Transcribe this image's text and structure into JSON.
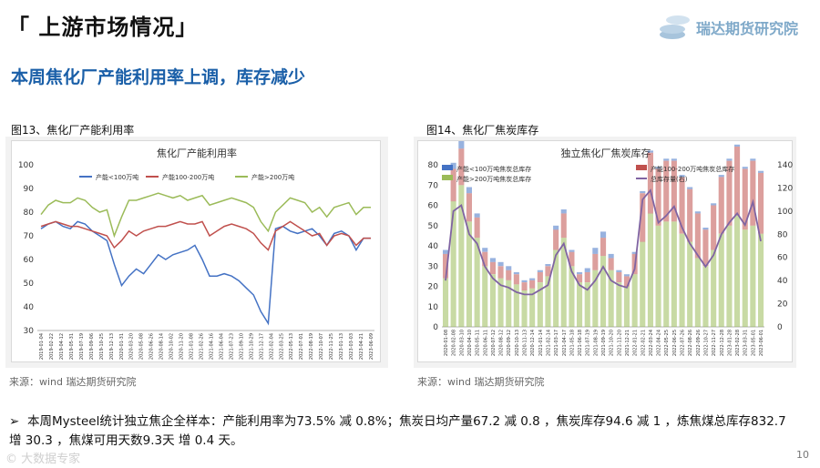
{
  "header": {
    "title": "「 上游市场情况」",
    "brand": "瑞达期货研究院"
  },
  "headline": "本周焦化厂产能利用率上调，库存减少",
  "figures": [
    {
      "caption": "图13、焦化厂产能利用率",
      "source": "来源：wind   瑞达期货研究院"
    },
    {
      "caption": "图14、焦化厂焦炭库存",
      "source": "来源：wind   瑞达期货研究院"
    }
  ],
  "bullet": "本周Mysteel统计独立焦企全样本：产能利用率为73.5% 减 0.8%；焦炭日均产量67.2 减 0.8 ，焦炭库存94.6 减 1 ，炼焦煤总库存832.7 增 30.3 ，焦煤可用天数9.3天 增 0.4 天。",
  "page_number": "10",
  "watermark": "© 大数据专家",
  "colors": {
    "blue": "#4472c4",
    "red": "#c0504d",
    "green": "#9bbb59",
    "purple": "#8064a2",
    "headline": "#1a5fa8"
  },
  "chart_data": [
    {
      "type": "line",
      "title": "焦化厂产能利用率",
      "ylim": [
        30,
        100
      ],
      "yticks": [
        30,
        40,
        50,
        60,
        70,
        80,
        90,
        100
      ],
      "x_ticks": [
        "2019-01-04",
        "2019-02-22",
        "2019-04-12",
        "2019-05-31",
        "2019-07-19",
        "2019-09-06",
        "2019-10-25",
        "2019-12-13",
        "2020-01-31",
        "2020-03-20",
        "2020-05-08",
        "2020-06-26",
        "2020-08-14",
        "2020-10-02",
        "2020-11-20",
        "2021-01-08",
        "2021-02-26",
        "2021-04-16",
        "2021-06-04",
        "2021-07-23",
        "2021-09-10",
        "2021-10-29",
        "2021-12-17",
        "2022-02-04",
        "2022-03-25",
        "2022-05-13",
        "2022-07-01",
        "2022-08-19",
        "2022-10-07",
        "2022-11-25",
        "2023-01-13",
        "2023-03-03",
        "2023-04-21",
        "2023-06-09"
      ],
      "legend_position": "top",
      "series": [
        {
          "name": "产能<100万吨",
          "color": "#4472c4",
          "values": [
            73,
            75,
            76,
            74,
            73,
            76,
            75,
            72,
            70,
            68,
            58,
            49,
            53,
            56,
            54,
            58,
            62,
            60,
            62,
            63,
            64,
            66,
            60,
            53,
            53,
            54,
            53,
            51,
            48,
            45,
            38,
            33,
            73,
            74,
            72,
            71,
            72,
            73,
            70,
            66,
            71,
            72,
            70,
            64,
            69,
            69
          ]
        },
        {
          "name": "产能100-200万吨",
          "color": "#c0504d",
          "values": [
            74,
            75,
            76,
            75,
            74,
            74,
            73,
            72,
            71,
            70,
            65,
            68,
            72,
            70,
            72,
            73,
            74,
            74,
            75,
            76,
            75,
            75,
            76,
            70,
            72,
            74,
            75,
            74,
            73,
            71,
            67,
            64,
            72,
            74,
            76,
            74,
            72,
            70,
            71,
            66,
            70,
            71,
            70,
            66,
            69,
            69
          ]
        },
        {
          "name": "产能>200万吨",
          "color": "#9bbb59",
          "values": [
            79,
            83,
            85,
            84,
            84,
            86,
            85,
            82,
            80,
            81,
            70,
            78,
            85,
            85,
            86,
            87,
            88,
            87,
            86,
            87,
            85,
            86,
            87,
            83,
            84,
            85,
            86,
            85,
            84,
            82,
            76,
            72,
            80,
            83,
            86,
            85,
            84,
            80,
            82,
            78,
            82,
            83,
            84,
            79,
            82,
            82
          ]
        }
      ]
    },
    {
      "type": "bar",
      "title": "独立焦化厂焦炭库存",
      "ylim_left": [
        0,
        80
      ],
      "ylim_right": [
        0,
        140
      ],
      "yticks_left": [
        0,
        10,
        20,
        30,
        40,
        50,
        60,
        70,
        80
      ],
      "yticks_right": [
        0,
        20,
        40,
        60,
        80,
        100,
        120,
        140
      ],
      "x_ticks": [
        "2020-01-08",
        "2020-02-08",
        "2020-03-10",
        "2020-04-10",
        "2020-05-11",
        "2020-06-11",
        "2020-07-12",
        "2020-08-12",
        "2020-09-12",
        "2020-10-13",
        "2020-11-13",
        "2020-12-14",
        "2021-01-14",
        "2021-02-14",
        "2021-03-17",
        "2021-04-17",
        "2021-05-18",
        "2021-06-18",
        "2021-07-19",
        "2021-08-19",
        "2021-09-19",
        "2021-10-20",
        "2021-11-20",
        "2021-12-21",
        "2022-01-21",
        "2022-02-21",
        "2022-03-24",
        "2022-04-24",
        "2022-05-25",
        "2022-06-25",
        "2022-07-26",
        "2022-08-26",
        "2022-09-26",
        "2022-10-27",
        "2022-11-27",
        "2022-12-28",
        "2023-01-28",
        "2023-02-28",
        "2023-03-31",
        "2023-05-01",
        "2023-06-01"
      ],
      "legend_position": "top",
      "series": [
        {
          "name": "产能<100万吨焦炭总库存",
          "color": "#4472c4",
          "axis": "left",
          "values": [
            2,
            3,
            4,
            3,
            2,
            2,
            2,
            2,
            2,
            1,
            1,
            1,
            1,
            1,
            2,
            2,
            1,
            1,
            2,
            3,
            3,
            2,
            1,
            1,
            1,
            1,
            1,
            1,
            1,
            1,
            1,
            1,
            1,
            1,
            1,
            1,
            1,
            1,
            1,
            1,
            1
          ]
        },
        {
          "name": "产能100-200万吨焦炭总库存",
          "color": "#c0504d",
          "axis": "left",
          "values": [
            12,
            16,
            18,
            14,
            10,
            7,
            6,
            6,
            5,
            5,
            4,
            4,
            5,
            5,
            10,
            12,
            7,
            4,
            5,
            8,
            9,
            6,
            5,
            5,
            10,
            24,
            30,
            28,
            30,
            30,
            28,
            26,
            22,
            18,
            22,
            28,
            32,
            34,
            30,
            32,
            30
          ]
        },
        {
          "name": "产能>200万吨焦炭总库存",
          "color": "#9bbb59",
          "axis": "left",
          "values": [
            24,
            62,
            70,
            52,
            44,
            30,
            26,
            24,
            23,
            21,
            18,
            19,
            22,
            25,
            38,
            44,
            30,
            22,
            22,
            28,
            35,
            28,
            22,
            20,
            26,
            42,
            56,
            50,
            52,
            52,
            46,
            42,
            34,
            30,
            38,
            46,
            50,
            55,
            48,
            50,
            46
          ]
        },
        {
          "name": "总库存量(右)",
          "color": "#8064a2",
          "axis": "right",
          "values": [
            40,
            100,
            105,
            80,
            72,
            52,
            42,
            36,
            34,
            30,
            28,
            28,
            32,
            36,
            62,
            72,
            48,
            36,
            32,
            40,
            52,
            40,
            36,
            34,
            50,
            110,
            118,
            90,
            96,
            104,
            86,
            72,
            62,
            52,
            62,
            80,
            90,
            98,
            88,
            108,
            74
          ]
        }
      ]
    }
  ]
}
